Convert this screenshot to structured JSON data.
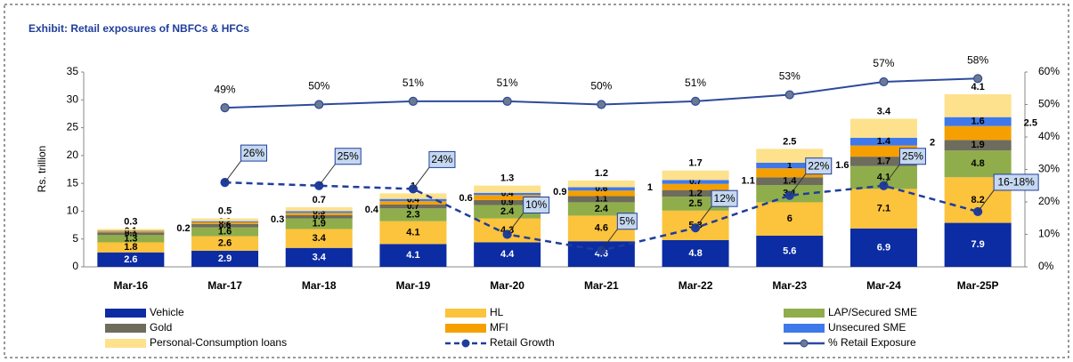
{
  "chart_data": {
    "type": "bar",
    "title": "Exhibit: Retail exposures of NBFCs & HFCs",
    "ylabel": "Rs. trillion",
    "categories": [
      "Mar-16",
      "Mar-17",
      "Mar-18",
      "Mar-19",
      "Mar-20",
      "Mar-21",
      "Mar-22",
      "Mar-23",
      "Mar-24",
      "Mar-25P"
    ],
    "stacked": true,
    "ylim": [
      0,
      35
    ],
    "yticks": [
      0,
      5,
      10,
      15,
      20,
      25,
      30,
      35
    ],
    "y2lim": [
      0,
      60
    ],
    "y2ticks": [
      {
        "value": 0,
        "label": "0%"
      },
      {
        "value": 10,
        "label": "10%"
      },
      {
        "value": 20,
        "label": "20%"
      },
      {
        "value": 30,
        "label": "30%"
      },
      {
        "value": 40,
        "label": "40%"
      },
      {
        "value": 50,
        "label": "50%"
      },
      {
        "value": 60,
        "label": "60%"
      }
    ],
    "series": [
      {
        "name": "Vehicle",
        "color": "#0b2ca3",
        "values": [
          2.6,
          2.9,
          3.4,
          4.1,
          4.4,
          4.6,
          4.8,
          5.6,
          6.9,
          7.9
        ]
      },
      {
        "name": "HL",
        "color": "#fcc33c",
        "values": [
          1.8,
          2.6,
          3.4,
          4.1,
          4.3,
          4.6,
          5.3,
          6.0,
          7.1,
          8.2
        ]
      },
      {
        "name": "LAP/Secured SME",
        "color": "#8fae4b",
        "values": [
          1.3,
          1.6,
          1.9,
          2.3,
          2.4,
          2.4,
          2.5,
          3.1,
          4.1,
          4.8
        ]
      },
      {
        "name": "Gold",
        "color": "#6e6c5c",
        "values": [
          0.5,
          0.6,
          0.6,
          0.7,
          0.9,
          1.1,
          1.2,
          1.4,
          1.7,
          1.9
        ]
      },
      {
        "name": "MFI",
        "color": "#f5a000",
        "values": [
          0.2,
          0.3,
          0.4,
          0.6,
          0.9,
          1.0,
          1.1,
          1.6,
          2.0,
          2.5
        ]
      },
      {
        "name": "Unsecured SME",
        "color": "#3f78ea",
        "values": [
          0.1,
          0.2,
          0.3,
          0.4,
          0.4,
          0.6,
          0.7,
          1.0,
          1.4,
          1.6
        ]
      },
      {
        "name": "Personal-Consumption loans",
        "color": "#fde18c",
        "values": [
          0.3,
          0.5,
          0.7,
          1.0,
          1.3,
          1.2,
          1.7,
          2.5,
          3.4,
          4.1
        ]
      },
      {
        "name": "Retail Growth",
        "type": "line",
        "axis": "y2",
        "color": "#1f3d9c",
        "dashed": true,
        "values": [
          null,
          26,
          25,
          24,
          10,
          5,
          12,
          22,
          25,
          17
        ],
        "value_labels": [
          null,
          "26%",
          "25%",
          "24%",
          "10%",
          "5%",
          "12%",
          "22%",
          "25%",
          "16-18%"
        ]
      },
      {
        "name": "% Retail Exposure",
        "type": "line",
        "axis": "y2",
        "color": "#2d4a9c",
        "values": [
          null,
          49,
          50,
          51,
          51,
          50,
          51,
          53,
          57,
          58
        ],
        "value_labels": [
          null,
          "49%",
          "50%",
          "51%",
          "51%",
          "50%",
          "51%",
          "53%",
          "57%",
          "58%"
        ]
      }
    ]
  }
}
